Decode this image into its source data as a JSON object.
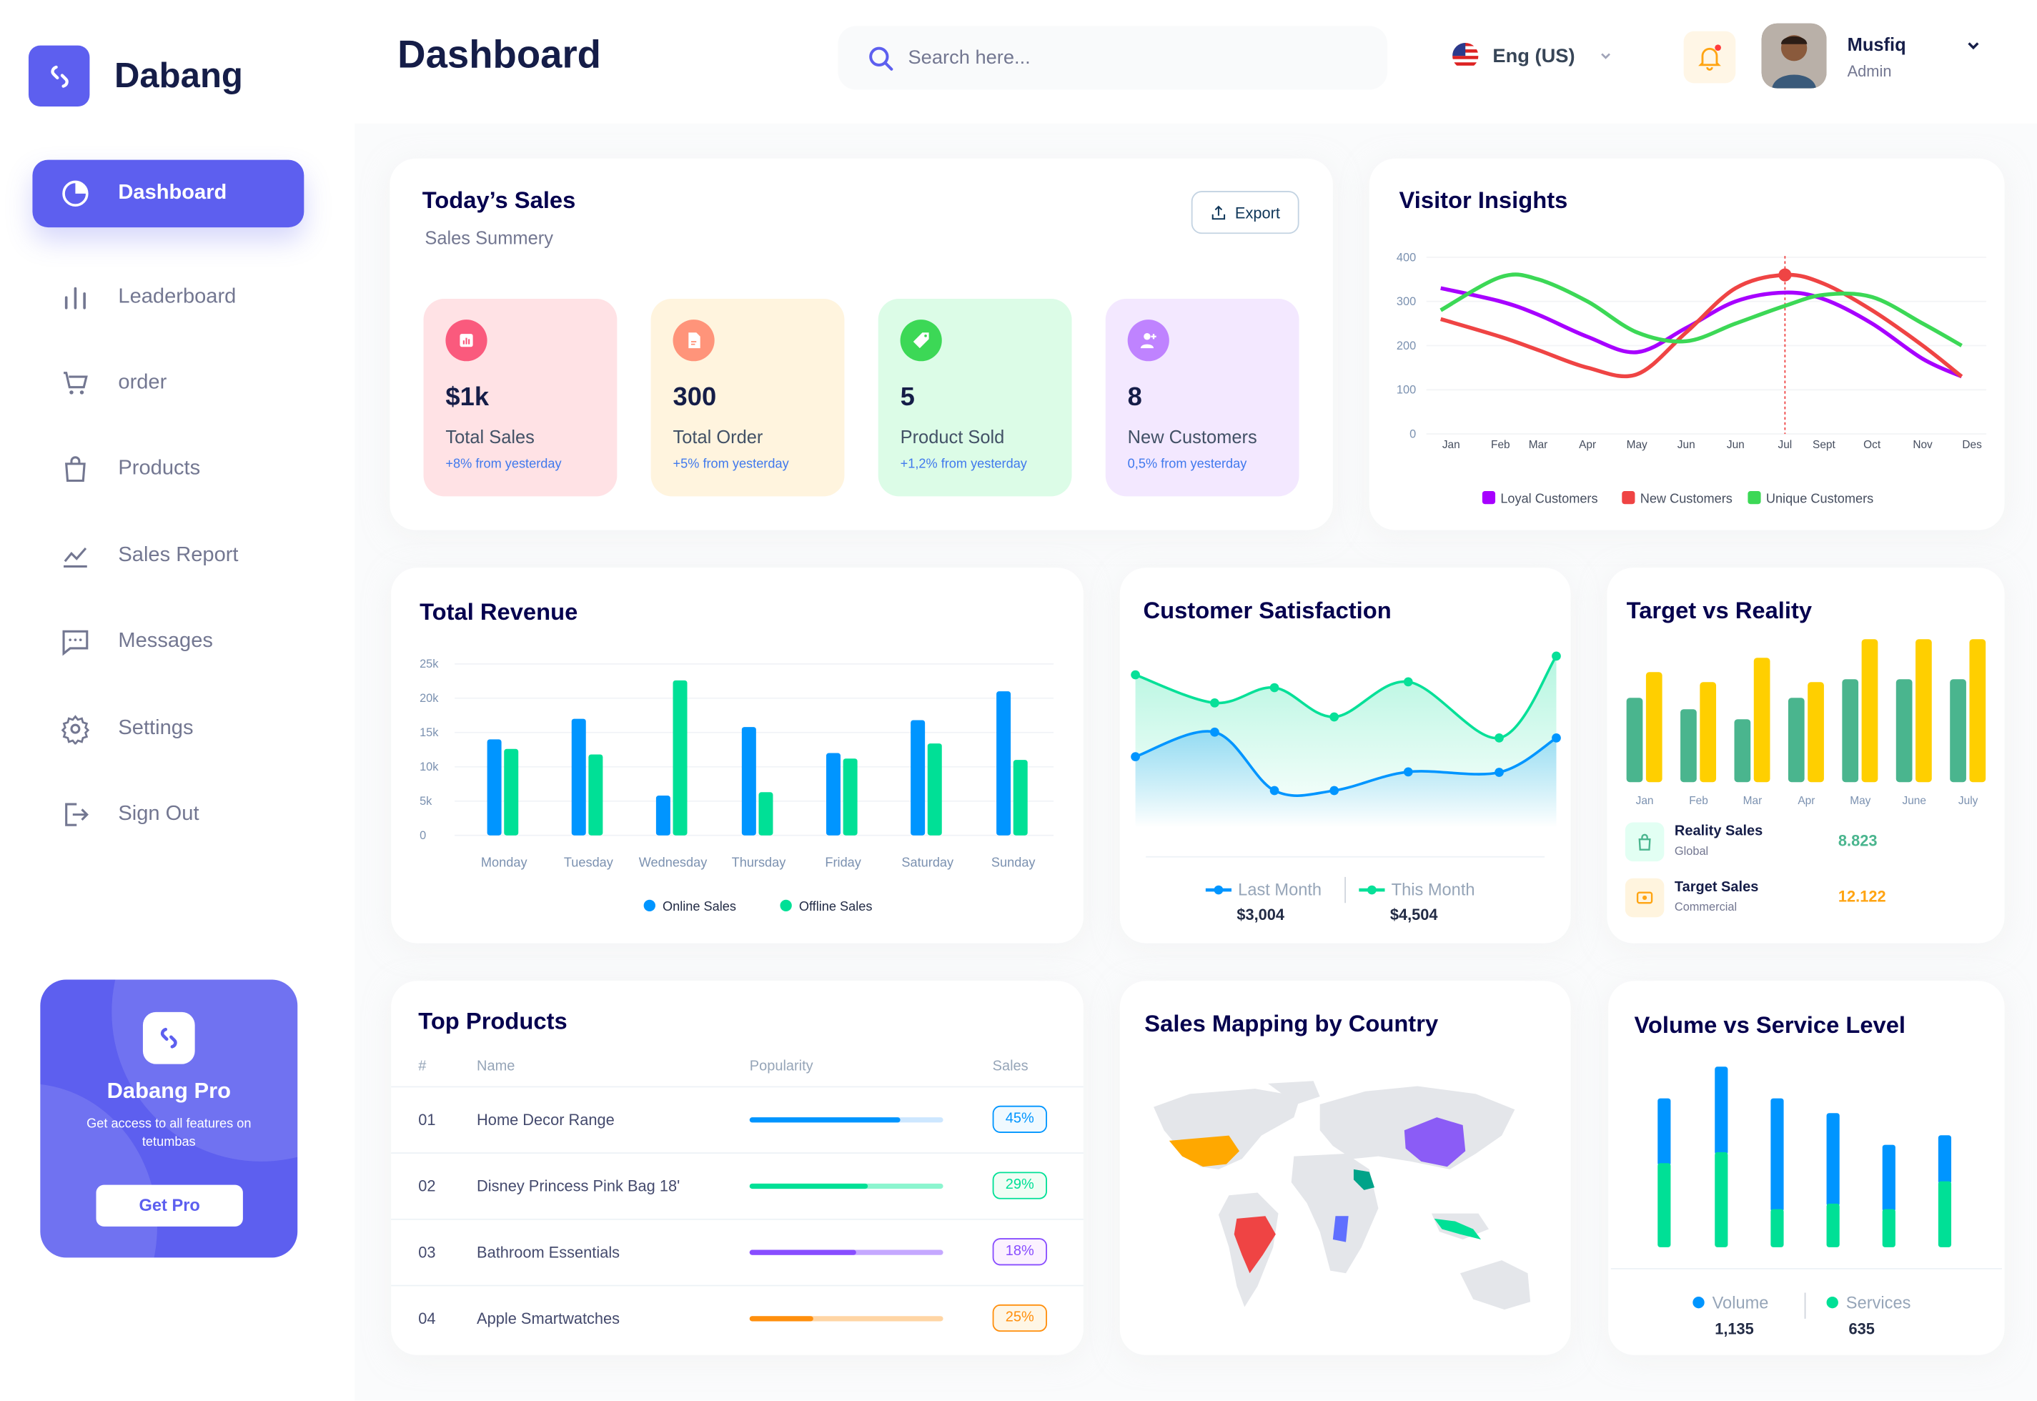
{
  "brand": {
    "name": "Dabang"
  },
  "sidebar": {
    "items": [
      {
        "label": "Dashboard",
        "icon": "pie-chart-icon",
        "active": true
      },
      {
        "label": "Leaderboard",
        "icon": "bar-chart-icon"
      },
      {
        "label": "order",
        "icon": "cart-icon"
      },
      {
        "label": "Products",
        "icon": "shopping-bag-icon"
      },
      {
        "label": "Sales Report",
        "icon": "line-chart-icon"
      },
      {
        "label": "Messages",
        "icon": "message-icon"
      },
      {
        "label": "Settings",
        "icon": "gear-icon"
      },
      {
        "label": "Sign Out",
        "icon": "sign-out-icon"
      }
    ],
    "promo": {
      "title": "Dabang Pro",
      "text": "Get access to all features on tetumbas",
      "button": "Get Pro"
    }
  },
  "header": {
    "title": "Dashboard",
    "search_placeholder": "Search here...",
    "language": "Eng (US)",
    "user_name": "Musfiq",
    "user_role": "Admin",
    "notification": true
  },
  "todays_sales": {
    "title": "Today’s Sales",
    "subtitle": "Sales Summery",
    "export": "Export",
    "stats": [
      {
        "value": "$1k",
        "label": "Total Sales",
        "change": "+8% from yesterday",
        "bg": "#ffe2e5",
        "icon_color": "#fa5a7d",
        "icon": "bar-chart-icon"
      },
      {
        "value": "300",
        "label": "Total Order",
        "change": "+5% from yesterday",
        "bg": "#fff4de",
        "icon_color": "#ff947a",
        "icon": "document-icon"
      },
      {
        "value": "5",
        "label": "Product Sold",
        "change": "+1,2% from yesterday",
        "bg": "#dcfce7",
        "icon_color": "#3cd856",
        "icon": "tag-icon"
      },
      {
        "value": "8",
        "label": "New Customers",
        "change": "0,5% from yesterday",
        "bg": "#f3e8ff",
        "icon_color": "#bf83ff",
        "icon": "add-user-icon"
      }
    ]
  },
  "target_summary": [
    {
      "title": "Reality Sales",
      "subtitle": "Global",
      "value": "8.823",
      "color": "#4ab58e"
    },
    {
      "title": "Target Sales",
      "subtitle": "Commercial",
      "value": "12.122",
      "color": "#ffa412"
    }
  ],
  "satisfaction_summary": [
    {
      "label": "Last Month",
      "value": "$3,004",
      "color": "#0095ff"
    },
    {
      "label": "This Month",
      "value": "$4,504",
      "color": "#07e098"
    }
  ],
  "volume_summary": [
    {
      "label": "Volume",
      "value": "1,135",
      "color": "#0095ff"
    },
    {
      "label": "Services",
      "value": "635",
      "color": "#00e096"
    }
  ],
  "top_products": {
    "title": "Top Products",
    "columns": [
      "#",
      "Name",
      "Popularity",
      "Sales"
    ],
    "rows": [
      {
        "num": "01",
        "name": "Home Decor Range",
        "popularity": 0.78,
        "sales": "45%",
        "color": "#0095ff",
        "track": "#cde7ff",
        "bg": "#f0f9ff"
      },
      {
        "num": "02",
        "name": "Disney Princess Pink Bag 18'",
        "popularity": 0.61,
        "sales": "29%",
        "color": "#00e096",
        "track": "#8cf5cf",
        "bg": "#f0fdf4"
      },
      {
        "num": "03",
        "name": "Bathroom Essentials",
        "popularity": 0.55,
        "sales": "18%",
        "color": "#884dff",
        "track": "#c5a8ff",
        "bg": "#fbf1ff"
      },
      {
        "num": "04",
        "name": "Apple Smartwatches",
        "popularity": 0.33,
        "sales": "25%",
        "color": "#ff8f0d",
        "track": "#ffd5a4",
        "bg": "#fef6e6"
      }
    ]
  },
  "sales_map": {
    "title": "Sales Mapping by Country",
    "highlight_colors": [
      "#ffa800",
      "#ef4444",
      "#00a389",
      "#5f6fff",
      "#8b5cf6",
      "#00e096"
    ]
  },
  "chart_data": [
    {
      "type": "line",
      "title": "Visitor Insights",
      "x": [
        "Jan",
        "Feb",
        "Mar",
        "Apr",
        "May",
        "Jun",
        "Jun",
        "Jul",
        "Sept",
        "Oct",
        "Nov",
        "Des"
      ],
      "yticks": [
        "0",
        "100",
        "200",
        "300",
        "400"
      ],
      "ylim": [
        0,
        400
      ],
      "grid": true,
      "legend": "bottom",
      "series": [
        {
          "name": "Loyal Customers",
          "color": "#a700ff",
          "values": [
            330,
            300,
            270,
            220,
            185,
            240,
            300,
            320,
            305,
            250,
            170,
            130
          ]
        },
        {
          "name": "New Customers",
          "color": "#ef4444",
          "values": [
            260,
            220,
            190,
            150,
            135,
            230,
            330,
            360,
            340,
            280,
            200,
            130
          ]
        },
        {
          "name": "Unique Customers",
          "color": "#3cd856",
          "values": [
            280,
            355,
            350,
            300,
            230,
            210,
            250,
            290,
            315,
            310,
            250,
            200
          ]
        }
      ],
      "highlight": {
        "series": "New Customers",
        "x": "Jul",
        "value": 360
      }
    },
    {
      "type": "bar",
      "title": "Total Revenue",
      "categories": [
        "Monday",
        "Tuesday",
        "Wednesday",
        "Thursday",
        "Friday",
        "Saturday",
        "Sunday"
      ],
      "yticks": [
        "0",
        "5k",
        "10k",
        "15k",
        "20k",
        "25k"
      ],
      "ylim": [
        0,
        25000
      ],
      "grid": true,
      "legend": "bottom",
      "series": [
        {
          "name": "Online Sales",
          "color": "#0095ff",
          "values": [
            14000,
            17000,
            5800,
            15800,
            12000,
            16800,
            21000
          ]
        },
        {
          "name": "Offline Sales",
          "color": "#00e096",
          "values": [
            12600,
            11800,
            22600,
            6300,
            11200,
            13400,
            11000
          ]
        }
      ]
    },
    {
      "type": "area",
      "title": "Customer Satisfaction",
      "legend": "bottom",
      "series": [
        {
          "name": "Last Month",
          "color": "#0095ff",
          "values": [
            3.7,
            4.75,
            2.25,
            2.25,
            3.05,
            3.03,
            4.5
          ]
        },
        {
          "name": "This Month",
          "color": "#07e098",
          "values": [
            7.2,
            6.0,
            6.65,
            5.4,
            6.9,
            4.5,
            8.0
          ]
        }
      ]
    },
    {
      "type": "bar",
      "title": "Target vs Reality",
      "categories": [
        "Jan",
        "Feb",
        "Mar",
        "Apr",
        "May",
        "June",
        "July"
      ],
      "series": [
        {
          "name": "Reality Sales",
          "color": "#4ab58e",
          "values": [
            59,
            51,
            44,
            59,
            72,
            72,
            72
          ]
        },
        {
          "name": "Target Sales",
          "color": "#ffcf00",
          "values": [
            77,
            70,
            87,
            70,
            100,
            100,
            100
          ]
        }
      ]
    },
    {
      "type": "bar",
      "stacked": true,
      "title": "Volume vs Service Level",
      "legend": "bottom",
      "series": [
        {
          "name": "Volume",
          "color": "#0095ff",
          "values": [
            272,
            359,
            465,
            380,
            270,
            193
          ]
        },
        {
          "name": "Services",
          "color": "#00e096",
          "values": [
            353,
            399,
            160,
            183,
            160,
            277
          ]
        }
      ]
    }
  ]
}
